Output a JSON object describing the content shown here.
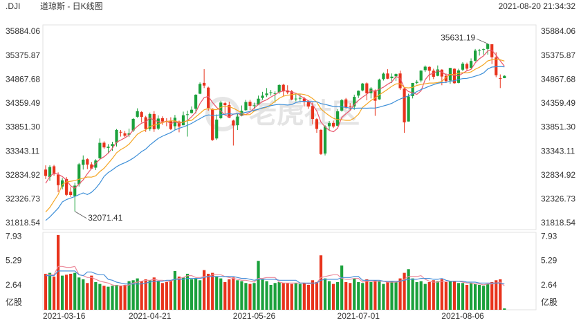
{
  "chart_data": {
    "type": "candlestick",
    "title": ".DJI",
    "subtitle": "道琼斯 - 日K线图",
    "timestamp": "2021-08-20 21:34:32",
    "watermark": "老虎社区",
    "up_color": "#1ba13c",
    "down_color": "#e8331c",
    "ylim": [
      31686,
      36031
    ],
    "yticks": [
      35884.06,
      35375.87,
      34867.68,
      34359.49,
      {
        "value": 33851.3,
        "label": "33851.30"
      },
      33343.11,
      32834.92,
      32326.73,
      31818.54
    ],
    "categories": [
      "2021-03-16",
      null,
      null,
      null,
      null,
      null,
      null,
      null,
      null,
      null,
      null,
      null,
      null,
      null,
      null,
      null,
      null,
      null,
      null,
      null,
      null,
      null,
      null,
      null,
      null,
      "2021-04-21",
      null,
      null,
      null,
      null,
      null,
      null,
      null,
      null,
      null,
      null,
      null,
      null,
      null,
      null,
      null,
      null,
      null,
      null,
      null,
      null,
      null,
      null,
      null,
      null,
      "2021-05-26",
      null,
      null,
      null,
      null,
      null,
      null,
      null,
      null,
      null,
      null,
      null,
      null,
      null,
      null,
      null,
      null,
      null,
      null,
      null,
      null,
      null,
      null,
      null,
      null,
      "2021-07-01",
      null,
      null,
      null,
      null,
      null,
      null,
      null,
      null,
      null,
      null,
      null,
      null,
      null,
      null,
      null,
      null,
      null,
      null,
      null,
      null,
      null,
      null,
      null,
      null,
      "2021-08-06",
      null,
      null,
      null,
      null,
      null,
      null,
      null,
      null,
      null,
      null
    ],
    "open": [
      32960,
      32800,
      33030,
      32850,
      32600,
      32760,
      32490,
      32400,
      32650,
      33060,
      33180,
      33070,
      33000,
      33200,
      33530,
      33420,
      33460,
      33530,
      33760,
      33730,
      33700,
      33790,
      34080,
      34180,
      34070,
      33820,
      34140,
      33830,
      34050,
      33990,
      34000,
      33880,
      33980,
      33900,
      34130,
      34160,
      34250,
      34570,
      34800,
      34700,
      34250,
      33620,
      34050,
      34370,
      34330,
      34000,
      33900,
      34100,
      34220,
      34400,
      34320,
      34340,
      34480,
      34540,
      34590,
      34570,
      34600,
      34760,
      34640,
      34620,
      34460,
      34480,
      34470,
      34400,
      34310,
      34030,
      33800,
      33300,
      33880,
      33950,
      33890,
      34210,
      34450,
      34300,
      34300,
      34530,
      34640,
      34790,
      34580,
      34640,
      34450,
      34880,
      35000,
      34900,
      34940,
      35000,
      34680,
      33980,
      34520,
      34800,
      34850,
      35070,
      35140,
      35060,
      34950,
      35080,
      34950,
      34850,
      35100,
      34800,
      35080,
      35200,
      35120,
      35270,
      35490,
      35500,
      35520,
      35620,
      35340,
      34900,
      34900
    ],
    "high": [
      33050,
      33050,
      33060,
      32900,
      32780,
      32800,
      32590,
      32680,
      33100,
      33260,
      33200,
      33120,
      33180,
      33620,
      33560,
      33500,
      33550,
      33820,
      33800,
      33780,
      33830,
      34050,
      34260,
      34200,
      34100,
      34170,
      34200,
      34110,
      34090,
      34050,
      34070,
      34120,
      34000,
      34190,
      34210,
      34300,
      34560,
      34810,
      35091,
      34720,
      34260,
      34130,
      34420,
      34400,
      34400,
      34020,
      34150,
      34320,
      34440,
      34440,
      34380,
      34530,
      34610,
      34690,
      34650,
      34620,
      34770,
      34780,
      34750,
      34650,
      34560,
      34560,
      34500,
      34430,
      34380,
      34050,
      33820,
      33900,
      33990,
      34000,
      34240,
      34460,
      34480,
      34370,
      34550,
      34640,
      34800,
      34810,
      34710,
      34660,
      34890,
      35020,
      35090,
      35000,
      35000,
      35060,
      34700,
      34570,
      34800,
      34860,
      35070,
      35170,
      35150,
      35100,
      35170,
      35090,
      35000,
      35120,
      35110,
      35100,
      35240,
      35230,
      35320,
      35520,
      35520,
      35530,
      35631.19,
      35620,
      35450,
      34980,
      34960
    ],
    "low": [
      32760,
      32720,
      32830,
      32480,
      32540,
      32400,
      32380,
      32071.41,
      32600,
      32960,
      32970,
      32970,
      32950,
      33180,
      33400,
      33320,
      33360,
      33450,
      33660,
      33650,
      33650,
      33760,
      34060,
      33960,
      33760,
      33780,
      33760,
      33800,
      33910,
      33880,
      33800,
      33800,
      33750,
      33900,
      33660,
      34150,
      34150,
      34560,
      34690,
      34210,
      33570,
      33590,
      34030,
      34140,
      34050,
      33470,
      33800,
      34090,
      34210,
      34220,
      34240,
      34330,
      34440,
      34500,
      34530,
      34380,
      34570,
      34520,
      34560,
      34430,
      34410,
      34420,
      34300,
      34250,
      33920,
      33740,
      33270,
      33260,
      33780,
      33840,
      33880,
      34190,
      34250,
      34220,
      34230,
      34480,
      34620,
      34430,
      34470,
      34100,
      34440,
      34850,
      34880,
      34800,
      34840,
      34650,
      33740,
      33980,
      34470,
      34770,
      34810,
      35030,
      34850,
      34880,
      34940,
      34750,
      34800,
      34780,
      34780,
      34790,
      35050,
      35050,
      35100,
      35250,
      35380,
      35400,
      35400,
      35200,
      34920,
      34690,
      34900
    ],
    "close": [
      32825,
      33015,
      32862,
      32628,
      32731,
      32423,
      32420,
      32619,
      33072,
      33171,
      33066,
      32981,
      33153,
      33527,
      33430,
      33446,
      33503,
      33801,
      33745,
      33677,
      33730,
      34036,
      34200,
      34078,
      33821,
      34137,
      33815,
      34043,
      33981,
      33984,
      33820,
      34060,
      33875,
      34113,
      34133,
      34230,
      34548,
      34778,
      34743,
      34270,
      33587,
      34021,
      34382,
      34327,
      34060,
      33896,
      34084,
      34208,
      34394,
      34313,
      34323,
      34465,
      34529,
      34575,
      34600,
      34577,
      34756,
      34630,
      34600,
      34447,
      34466,
      34480,
      34394,
      34299,
      34033,
      33823,
      33290,
      33876,
      33945,
      33874,
      34196,
      34433,
      34283,
      34292,
      34503,
      34633,
      34786,
      34577,
      34681,
      34421,
      34870,
      34996,
      34889,
      34933,
      34987,
      34687,
      33962,
      34512,
      34798,
      34823,
      35061,
      35144,
      35058,
      34930,
      35085,
      34935,
      34838,
      35117,
      34793,
      35065,
      35209,
      35102,
      35265,
      35485,
      35500,
      35515,
      35625,
      35343,
      34961,
      34894,
      34950
    ],
    "ma_lines": [
      {
        "color": "#e9546b",
        "values": [
          32668,
          32811,
          32887,
          32857,
          32812,
          32732,
          32613,
          32564,
          32653,
          32741,
          32870,
          32982,
          33089,
          33180,
          33231,
          33307,
          33412,
          33541,
          33585,
          33634,
          33691,
          33798,
          33878,
          33944,
          33973,
          34054,
          34010,
          33979,
          33959,
          33992,
          33929,
          33978,
          33944,
          33970,
          34000,
          34082,
          34180,
          34360,
          34486,
          34514,
          34385,
          34280,
          34201,
          34117,
          34075,
          34137,
          34150,
          34115,
          34128,
          34179,
          34264,
          34341,
          34405,
          34441,
          34498,
          34549,
          34607,
          34628,
          34633,
          34602,
          34580,
          34525,
          34477,
          34417,
          34334,
          34206,
          33968,
          33864,
          33793,
          33762,
          33836,
          34065,
          34146,
          34216,
          34341,
          34429,
          34499,
          34558,
          34636,
          34620,
          34667,
          34709,
          34771,
          34822,
          34935,
          34898,
          34692,
          34616,
          34589,
          34556,
          34631,
          34868,
          34977,
          35003,
          35056,
          35030,
          34969,
          34981,
          34954,
          34950,
          35004,
          35057,
          35087,
          35225,
          35312,
          35373,
          35478,
          35494,
          35389,
          35268,
          35155
        ]
      },
      {
        "color": "#f5a623",
        "values": [
          32059,
          32156,
          32294,
          32429,
          32641,
          32700,
          32712,
          32726,
          32755,
          32777,
          32801,
          32798,
          32827,
          32917,
          32986,
          33089,
          33197,
          33315,
          33383,
          33433,
          33499,
          33605,
          33710,
          33765,
          33804,
          33873,
          33904,
          33929,
          33952,
          33983,
          33992,
          33994,
          33962,
          33965,
          33996,
          34006,
          34079,
          34152,
          34228,
          34257,
          34234,
          34230,
          34281,
          34302,
          34295,
          34261,
          34215,
          34158,
          34123,
          34127,
          34201,
          34246,
          34260,
          34285,
          34339,
          34407,
          34474,
          34517,
          34537,
          34550,
          34565,
          34566,
          34553,
          34525,
          34468,
          34393,
          34247,
          34171,
          34105,
          34048,
          34021,
          34017,
          34005,
          34005,
          34052,
          34133,
          34282,
          34352,
          34426,
          34481,
          34548,
          34604,
          34665,
          34729,
          34778,
          34783,
          34701,
          34694,
          34706,
          34746,
          34765,
          34780,
          34797,
          34796,
          34806,
          34831,
          34919,
          34979,
          34979,
          35003,
          35017,
          35013,
          35034,
          35090,
          35131,
          35189,
          35268,
          35291,
          35307,
          35290,
          35264
        ]
      },
      {
        "color": "#3d8fd8",
        "values": [
          31880,
          31953,
          32047,
          32140,
          32271,
          32325,
          32356,
          32388,
          32428,
          32464,
          32430,
          32477,
          32561,
          32673,
          32814,
          32895,
          32955,
          33021,
          33069,
          33105,
          33150,
          33202,
          33269,
          33341,
          33395,
          33481,
          33551,
          33622,
          33668,
          33708,
          33746,
          33800,
          33836,
          33865,
          33900,
          33940,
          33992,
          34041,
          34090,
          34120,
          34113,
          34112,
          34122,
          34134,
          34146,
          34134,
          34147,
          34155,
          34176,
          34192,
          34218,
          34238,
          34271,
          34294,
          34317,
          34334,
          34345,
          34338,
          34330,
          34339,
          34383,
          34406,
          34407,
          34405,
          34404,
          34400,
          34361,
          34344,
          34321,
          34299,
          34293,
          34292,
          34279,
          34265,
          34260,
          34263,
          34265,
          34262,
          34266,
          34265,
          34285,
          34311,
          34335,
          34367,
          34415,
          34458,
          34492,
          34523,
          34566,
          34614,
          34657,
          34692,
          34731,
          34763,
          34792,
          34807,
          34810,
          34837,
          34843,
          34875,
          34891,
          34897,
          34916,
          34943,
          34969,
          35010,
          35094,
          35135,
          35143,
          35147,
          35141
        ]
      }
    ],
    "volume": {
      "ylim": [
        0,
        8.24
      ],
      "yticks": [
        {
          "value": 0,
          "label": "亿股"
        },
        2.64,
        5.29,
        7.93
      ],
      "values": [
        3.9,
        4.0,
        3.6,
        8.1,
        3.7,
        3.8,
        3.9,
        4.0,
        3.5,
        3.3,
        2.9,
        3.7,
        3.0,
        2.8,
        2.6,
        2.5,
        2.6,
        2.7,
        2.6,
        2.7,
        3.1,
        3.2,
        3.4,
        3.1,
        3.3,
        3.2,
        3.5,
        3.1,
        2.9,
        3.0,
        3.2,
        4.2,
        3.6,
        3.5,
        3.9,
        3.3,
        3.4,
        3.2,
        4.3,
        3.9,
        4.0,
        3.6,
        3.4,
        3.0,
        3.3,
        3.5,
        3.2,
        3.1,
        2.9,
        2.8,
        2.9,
        5.3,
        3.3,
        3.1,
        2.7,
        2.9,
        3.0,
        2.9,
        2.9,
        2.8,
        2.9,
        2.8,
        2.9,
        2.7,
        3.2,
        3.0,
        5.9,
        3.4,
        3.1,
        2.8,
        3.0,
        4.8,
        3.0,
        2.9,
        3.4,
        3.0,
        2.9,
        3.3,
        3.0,
        3.2,
        3.1,
        2.8,
        3.0,
        3.1,
        3.0,
        3.4,
        4.0,
        4.4,
        3.4,
        3.0,
        3.1,
        2.8,
        3.0,
        3.2,
        3.1,
        3.3,
        3.0,
        3.1,
        3.1,
        2.9,
        2.9,
        2.7,
        2.9,
        2.8,
        2.7,
        2.6,
        2.8,
        3.0,
        3.2,
        3.3,
        0.15
      ],
      "ma_lines": [
        {
          "color": "#ec8a9b",
          "values": [
            3.8,
            3.8,
            3.8,
            4.7,
            4.7,
            4.6,
            4.6,
            4.7,
            3.8,
            3.7,
            3.5,
            3.5,
            3.3,
            3.1,
            3.0,
            2.9,
            2.7,
            2.6,
            2.6,
            2.6,
            2.7,
            2.9,
            3.0,
            3.1,
            3.2,
            3.2,
            3.3,
            3.2,
            3.2,
            3.1,
            3.1,
            3.3,
            3.4,
            3.5,
            3.7,
            3.7,
            3.5,
            3.5,
            3.6,
            3.6,
            3.8,
            3.8,
            3.8,
            3.6,
            3.5,
            3.4,
            3.3,
            3.2,
            3.2,
            3.1,
            3.0,
            3.4,
            3.4,
            3.5,
            3.5,
            3.5,
            3.0,
            2.9,
            2.9,
            2.9,
            2.9,
            2.9,
            2.9,
            2.8,
            2.9,
            2.9,
            3.5,
            3.6,
            3.7,
            3.8,
            3.8,
            3.4,
            3.3,
            3.3,
            3.4,
            3.4,
            3.0,
            3.1,
            3.1,
            3.1,
            3.1,
            3.1,
            3.0,
            3.0,
            3.0,
            3.1,
            3.3,
            3.6,
            3.6,
            3.6,
            3.7,
            3.3,
            3.1,
            3.0,
            3.0,
            3.1,
            3.1,
            3.1,
            3.1,
            3.1,
            3.0,
            2.9,
            2.9,
            2.8,
            2.8,
            2.7,
            2.8,
            2.8,
            2.9,
            3.0,
            2.6
          ]
        },
        {
          "color": "#4a90d9",
          "values": [
            3.7,
            3.7,
            3.7,
            4.2,
            4.2,
            4.2,
            4.2,
            4.2,
            3.8,
            3.7,
            4.1,
            4.1,
            3.9,
            3.8,
            3.8,
            3.3,
            3.2,
            3.0,
            2.9,
            2.8,
            2.8,
            2.8,
            2.8,
            2.8,
            2.9,
            3.0,
            3.1,
            3.1,
            3.1,
            3.2,
            3.2,
            3.3,
            3.3,
            3.3,
            3.4,
            3.4,
            3.4,
            3.4,
            3.5,
            3.6,
            3.6,
            3.6,
            3.6,
            3.6,
            3.6,
            3.6,
            3.5,
            3.4,
            3.4,
            3.3,
            3.2,
            3.3,
            3.3,
            3.3,
            3.3,
            3.3,
            3.2,
            3.2,
            3.2,
            3.2,
            3.2,
            2.9,
            2.9,
            2.9,
            2.9,
            2.9,
            3.2,
            3.3,
            3.3,
            3.3,
            3.3,
            3.5,
            3.5,
            3.5,
            3.6,
            3.6,
            3.2,
            3.2,
            3.2,
            3.2,
            3.2,
            3.1,
            3.1,
            3.1,
            3.1,
            3.1,
            3.2,
            3.3,
            3.3,
            3.3,
            3.4,
            3.4,
            3.4,
            3.3,
            3.3,
            3.4,
            3.2,
            3.1,
            3.1,
            3.1,
            3.1,
            3.0,
            3.0,
            3.0,
            2.9,
            2.9,
            2.9,
            2.9,
            2.9,
            2.9,
            2.8
          ]
        }
      ]
    }
  }
}
